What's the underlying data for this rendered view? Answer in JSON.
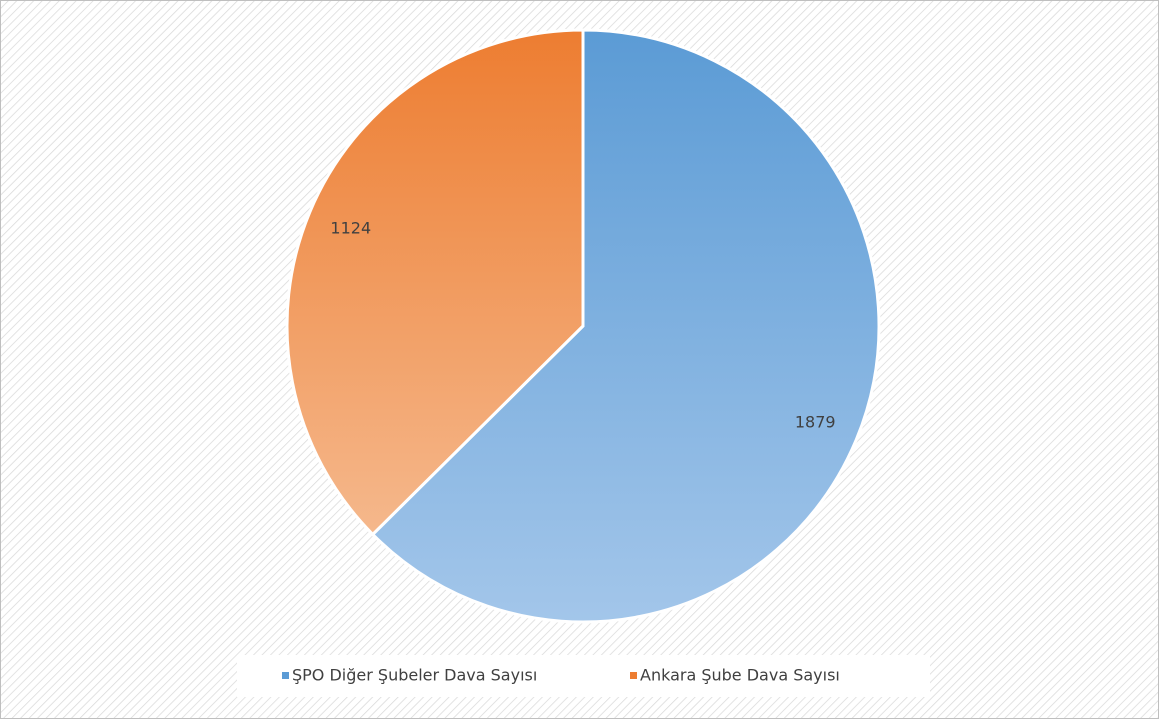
{
  "chart_data": {
    "type": "pie",
    "categories": [
      "ŞPO Diğer Şubeler Dava Sayısı",
      "Ankara Şube Dava Sayısı"
    ],
    "values": [
      1879,
      1124
    ],
    "colors": [
      "#5b9bd5",
      "#ed7d31"
    ],
    "legend": "bottom"
  }
}
